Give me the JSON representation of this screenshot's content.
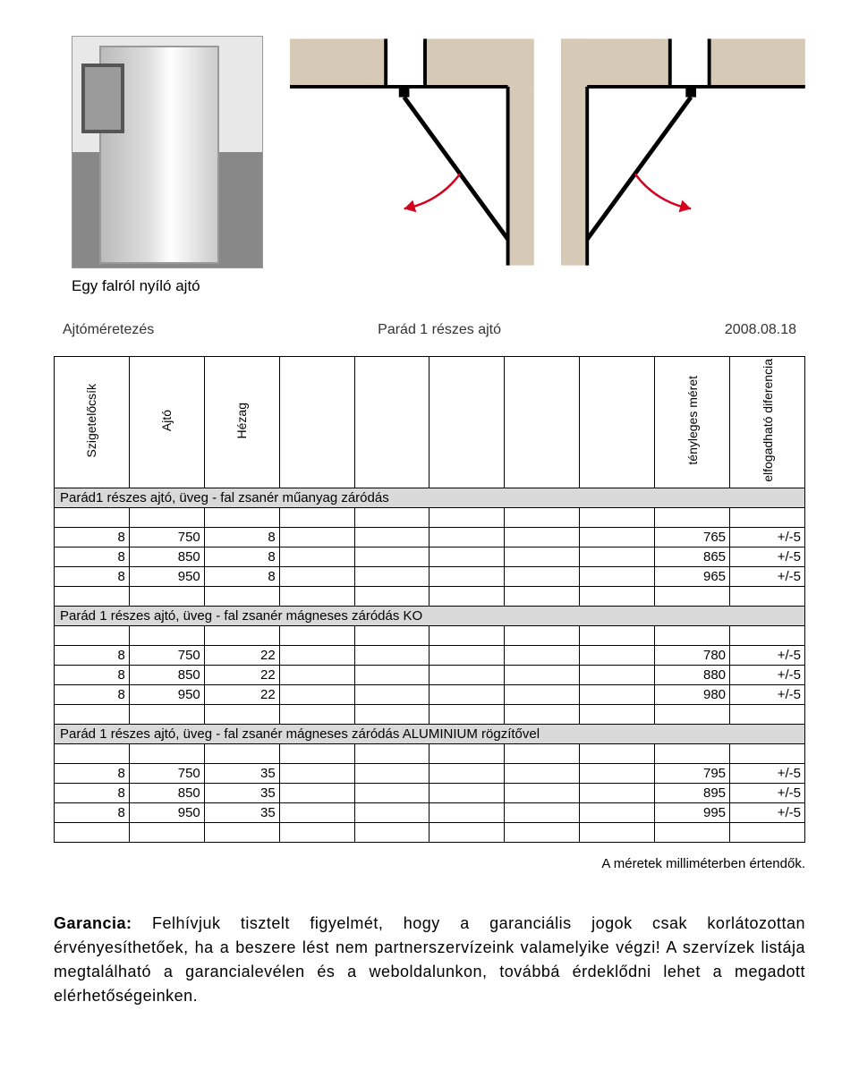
{
  "caption": "Egy falról nyíló ajtó",
  "headerRow": {
    "left": "Ajtóméretezés",
    "mid": "Parád 1 részes ajtó",
    "right": "2008.08.18"
  },
  "colHeaders": [
    "Szigetelőcsík",
    "Ajtó",
    "Hézag",
    "",
    "",
    "",
    "",
    "",
    "tényleges méret",
    "elfogadható diferencia"
  ],
  "colWidths": [
    "10%",
    "10%",
    "10%",
    "10%",
    "10%",
    "10%",
    "10%",
    "10%",
    "10%",
    "10%"
  ],
  "sections": [
    {
      "title": "Parád1 részes ajtó, üveg - fal zsanér  műanyag záródás",
      "rows": [
        [
          "8",
          "750",
          "8",
          "",
          "",
          "",
          "",
          "",
          "765",
          "+/-5"
        ],
        [
          "8",
          "850",
          "8",
          "",
          "",
          "",
          "",
          "",
          "865",
          "+/-5"
        ],
        [
          "8",
          "950",
          "8",
          "",
          "",
          "",
          "",
          "",
          "965",
          "+/-5"
        ]
      ]
    },
    {
      "title": "Parád 1 részes ajtó, üveg - fal zsanér mágneses záródás KO",
      "rows": [
        [
          "8",
          "750",
          "22",
          "",
          "",
          "",
          "",
          "",
          "780",
          "+/-5"
        ],
        [
          "8",
          "850",
          "22",
          "",
          "",
          "",
          "",
          "",
          "880",
          "+/-5"
        ],
        [
          "8",
          "950",
          "22",
          "",
          "",
          "",
          "",
          "",
          "980",
          "+/-5"
        ]
      ]
    },
    {
      "title": "Parád 1 részes ajtó, üveg - fal zsanér mágneses záródás ALUMINIUM rögzítővel",
      "rows": [
        [
          "8",
          "750",
          "35",
          "",
          "",
          "",
          "",
          "",
          "795",
          "+/-5"
        ],
        [
          "8",
          "850",
          "35",
          "",
          "",
          "",
          "",
          "",
          "895",
          "+/-5"
        ],
        [
          "8",
          "950",
          "35",
          "",
          "",
          "",
          "",
          "",
          "995",
          "+/-5"
        ]
      ]
    }
  ],
  "footnote": "A méretek milliméterben értendők.",
  "warranty": {
    "label": "Garancia:",
    "text": "Felhívjuk tisztelt figyelmét, hogy a garanciális jogok csak korlátozottan érvényesíthetőek, ha a beszere lést nem partnerszervízeink valamelyike végzi! A szervízek listája megtalálható a garancialevélen és a weboldalunkon, továbbá érdeklődni lehet a megadott elérhetőségeinken."
  },
  "colors": {
    "sectionBg": "#d9d9d9",
    "diagBg": "#d6c9b5",
    "arcColor": "#d4021d"
  }
}
